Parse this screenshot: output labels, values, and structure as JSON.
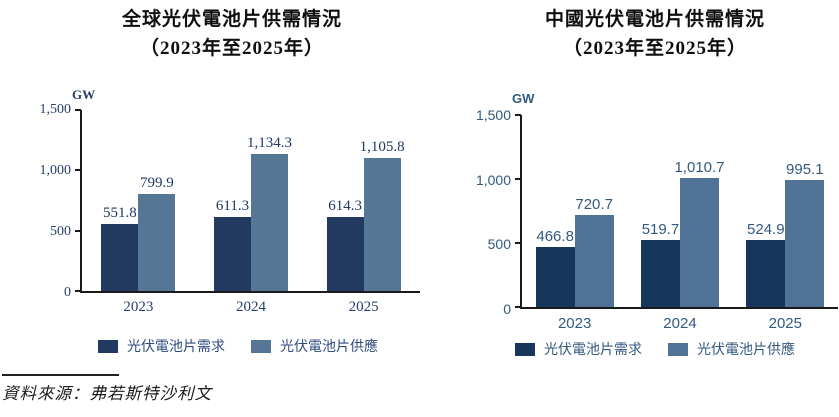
{
  "chart_data": [
    {
      "type": "bar",
      "title": "全球光伏電池片供需情況",
      "subtitle": "（2023年至2025年）",
      "unit": "GW",
      "categories": [
        "2023",
        "2024",
        "2025"
      ],
      "series": [
        {
          "key": "demand",
          "name": "光伏電池片需求",
          "color": "#223A60",
          "values": [
            551.8,
            611.3,
            614.3
          ],
          "labels": [
            "551.8",
            "611.3",
            "614.3"
          ]
        },
        {
          "key": "supply",
          "name": "光伏電池片供應",
          "color": "#567696",
          "values": [
            799.9,
            1134.3,
            1105.8
          ],
          "labels": [
            "799.9",
            "1,134.3",
            "1,105.8"
          ]
        }
      ],
      "ylim": [
        0,
        1500
      ],
      "y_ticks": [
        "1,500",
        "1,000",
        "500",
        "0"
      ],
      "grid": false,
      "legend_position": "bottom"
    },
    {
      "type": "bar",
      "title": "中國光伏電池片供需情況",
      "subtitle": "（2023年至2025年）",
      "unit": "GW",
      "categories": [
        "2023",
        "2024",
        "2025"
      ],
      "series": [
        {
          "key": "demand",
          "name": "光伏電池片需求",
          "color": "#16365C",
          "values": [
            466.8,
            519.7,
            524.9
          ],
          "labels": [
            "466.8",
            "519.7",
            "524.9"
          ]
        },
        {
          "key": "supply",
          "name": "光伏電池片供應",
          "color": "#4F7296",
          "values": [
            720.7,
            1010.7,
            995.1
          ],
          "labels": [
            "720.7",
            "1,010.7",
            "995.1"
          ]
        }
      ],
      "ylim": [
        0,
        1500
      ],
      "y_ticks": [
        "1,500",
        "1,000",
        "500",
        "0"
      ],
      "grid": false,
      "legend_position": "bottom"
    }
  ],
  "source": {
    "label": "資料來源：弗若斯特沙利文"
  }
}
